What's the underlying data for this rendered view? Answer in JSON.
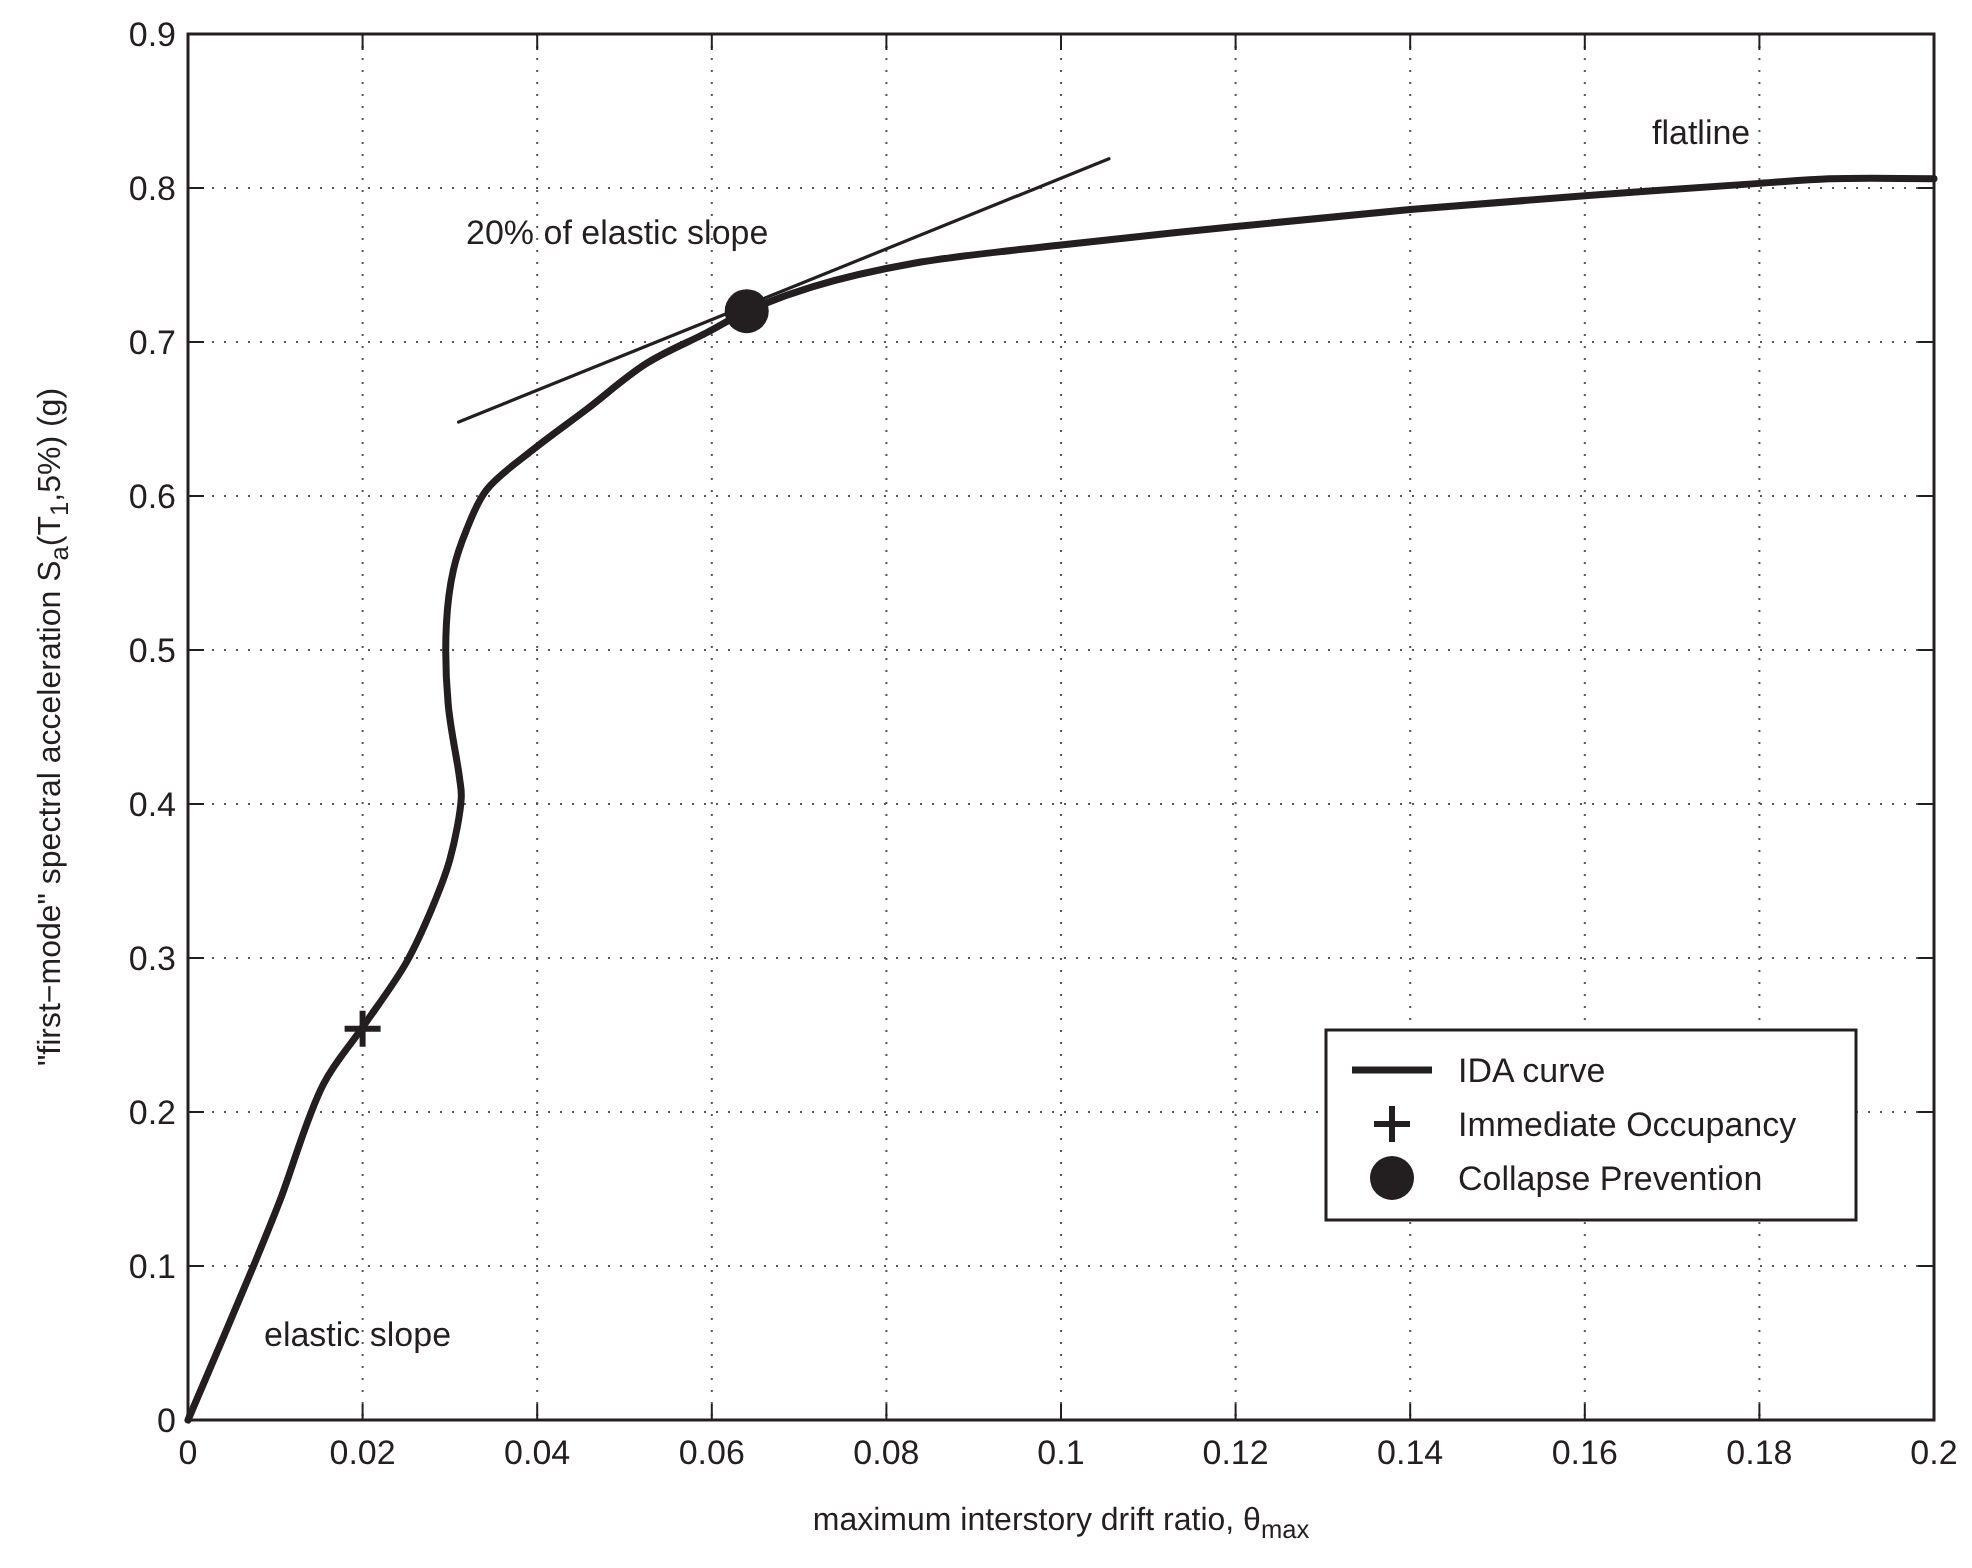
{
  "chart_data": {
    "type": "line",
    "xlabel": "maximum interstory drift ratio, θ$_{max}$",
    "ylabel": "\"first−mode\" spectral acceleration S$_{a}$(T$_{1}$,5%) (g)",
    "xlim": [
      0,
      0.2
    ],
    "ylim": [
      0,
      0.9
    ],
    "xticks": [
      0,
      0.02,
      0.04,
      0.06,
      0.08,
      0.1,
      0.12,
      0.14,
      0.16,
      0.18,
      0.2
    ],
    "yticks": [
      0,
      0.1,
      0.2,
      0.3,
      0.4,
      0.5,
      0.6,
      0.7,
      0.8,
      0.9
    ],
    "grid": true,
    "legend": "bottom right",
    "line_style": "solid",
    "series": [
      {
        "name": "IDA curve",
        "color": "#231f20",
        "marker": "none",
        "x": [
          0,
          0.0075,
          0.0105,
          0.0155,
          0.02,
          0.025,
          0.028,
          0.03,
          0.0313,
          0.0311,
          0.0298,
          0.0296,
          0.0304,
          0.0319,
          0.0342,
          0.0395,
          0.0456,
          0.0525,
          0.0594,
          0.064,
          0.0716,
          0.083,
          0.1,
          0.12,
          0.14,
          0.16,
          0.18,
          0.188,
          0.2
        ],
        "values": [
          0,
          0.1,
          0.142,
          0.218,
          0.255,
          0.297,
          0.333,
          0.364,
          0.404,
          0.417,
          0.465,
          0.517,
          0.552,
          0.578,
          0.604,
          0.63,
          0.656,
          0.686,
          0.706,
          0.72,
          0.736,
          0.751,
          0.763,
          0.775,
          0.786,
          0.795,
          0.803,
          0.806,
          0.806
        ]
      },
      {
        "color": "#231f20",
        "marker": "none",
        "x": [
          0.031,
          0.1055
        ],
        "values": [
          0.648,
          0.819
        ]
      },
      {
        "name": "Immediate Occupancy",
        "type": "scatter",
        "color": "#231f20",
        "marker": "cross",
        "x": [
          0.02
        ],
        "values": [
          0.254
        ]
      },
      {
        "name": "Collapse Prevention",
        "type": "scatter",
        "color": "#231f20",
        "marker": "circle",
        "x": [
          0.064
        ],
        "values": [
          0.72
        ]
      }
    ],
    "annotations": [
      "20% of elastic slope",
      "elastic slope",
      "flatline"
    ]
  }
}
